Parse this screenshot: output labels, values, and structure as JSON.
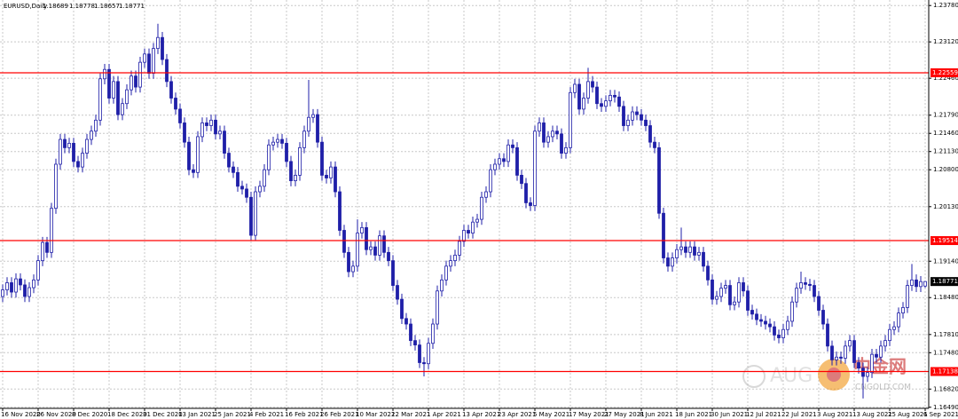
{
  "chart_data": {
    "type": "candlestick",
    "symbol": "EURUSD,Daily",
    "categories": [
      "16 Nov 2020",
      null,
      null,
      null,
      null,
      null,
      null,
      null,
      "26 Nov 2020",
      null,
      null,
      null,
      null,
      null,
      null,
      null,
      "8 Dec 2020",
      null,
      null,
      null,
      null,
      null,
      null,
      null,
      "18 Dec 2020",
      null,
      null,
      null,
      null,
      null,
      null,
      null,
      "31 Dec 2020",
      null,
      null,
      null,
      null,
      null,
      null,
      null,
      "13 Jan 2021",
      null,
      null,
      null,
      null,
      null,
      null,
      null,
      "25 Jan 2021",
      null,
      null,
      null,
      null,
      null,
      null,
      null,
      "4 Feb 2021",
      null,
      null,
      null,
      null,
      null,
      null,
      null,
      "16 Feb 2021",
      null,
      null,
      null,
      null,
      null,
      null,
      null,
      "26 Feb 2021",
      null,
      null,
      null,
      null,
      null,
      null,
      null,
      "10 Mar 2021",
      null,
      null,
      null,
      null,
      null,
      null,
      null,
      "22 Mar 2021",
      null,
      null,
      null,
      null,
      null,
      null,
      null,
      "1 Apr 2021",
      null,
      null,
      null,
      null,
      null,
      null,
      null,
      "13 Apr 2021",
      null,
      null,
      null,
      null,
      null,
      null,
      null,
      "23 Apr 2021",
      null,
      null,
      null,
      null,
      null,
      null,
      null,
      "5 May 2021",
      null,
      null,
      null,
      null,
      null,
      null,
      null,
      "17 May 2021",
      null,
      null,
      null,
      null,
      null,
      null,
      null,
      "27 May 2021",
      null,
      null,
      null,
      null,
      null,
      null,
      null,
      "8 Jun 2021",
      null,
      null,
      null,
      null,
      null,
      null,
      null,
      "18 Jun 2021",
      null,
      null,
      null,
      null,
      null,
      null,
      null,
      "30 Jun 2021",
      null,
      null,
      null,
      null,
      null,
      null,
      null,
      "12 Jul 2021",
      null,
      null,
      null,
      null,
      null,
      null,
      null,
      "22 Jul 2021",
      null,
      null,
      null,
      null,
      null,
      null,
      null,
      "3 Aug 2021",
      null,
      null,
      null,
      null,
      null,
      null,
      null,
      "13 Aug 2021",
      null,
      null,
      null,
      null,
      null,
      null,
      null,
      "25 Aug 2021",
      null,
      null,
      null,
      null,
      null,
      null,
      null,
      "6 Sep 2021"
    ],
    "open": [
      1.185,
      1.1862,
      1.1875,
      1.1858,
      1.1882,
      1.1871,
      1.185,
      1.1866,
      1.188,
      1.1915,
      1.1948,
      1.193,
      1.201,
      1.209,
      1.2135,
      1.212,
      1.2128,
      1.2095,
      1.2085,
      1.211,
      1.2135,
      1.215,
      1.217,
      1.2245,
      1.2262,
      1.221,
      1.224,
      1.218,
      1.22,
      1.2225,
      1.225,
      1.223,
      1.2275,
      1.229,
      1.2255,
      1.23,
      1.232,
      1.228,
      1.224,
      1.221,
      1.219,
      1.2165,
      1.213,
      1.208,
      1.2075,
      1.214,
      1.2165,
      1.216,
      1.217,
      1.2145,
      1.215,
      1.211,
      1.2085,
      1.2075,
      1.205,
      1.2045,
      1.203,
      1.1961,
      1.204,
      1.205,
      1.208,
      1.2125,
      1.213,
      1.2135,
      1.2128,
      1.2095,
      1.206,
      1.207,
      1.212,
      1.215,
      1.2175,
      1.218,
      1.213,
      1.207,
      1.2065,
      1.2085,
      1.204,
      1.197,
      1.193,
      1.1895,
      1.1905,
      1.1965,
      1.1975,
      1.1935,
      1.194,
      1.1925,
      1.196,
      1.193,
      1.1915,
      1.187,
      1.1845,
      1.181,
      1.18,
      1.177,
      1.1762,
      1.173,
      1.1728,
      1.1765,
      1.18,
      1.186,
      1.188,
      1.1905,
      1.1915,
      1.1925,
      1.195,
      1.197,
      1.1965,
      1.1985,
      1.199,
      1.203,
      1.204,
      1.208,
      1.209,
      1.21,
      1.2095,
      1.2125,
      1.212,
      1.207,
      1.2055,
      1.202,
      1.2015,
      1.215,
      1.2165,
      1.213,
      1.214,
      1.215,
      1.2145,
      1.211,
      1.212,
      1.222,
      1.2235,
      1.219,
      1.221,
      1.224,
      1.223,
      1.22,
      1.2195,
      1.2205,
      1.2215,
      1.2212,
      1.2195,
      1.216,
      1.217,
      1.2185,
      1.218,
      1.217,
      1.216,
      1.213,
      1.212,
      1.2001,
      1.192,
      1.1905,
      1.192,
      1.1935,
      1.194,
      1.193,
      1.194,
      1.1925,
      1.193,
      1.1905,
      1.188,
      1.1845,
      1.185,
      1.1865,
      1.187,
      1.1835,
      1.184,
      1.1875,
      1.186,
      1.1825,
      1.1818,
      1.1808,
      1.1805,
      1.18,
      1.1795,
      1.178,
      1.1775,
      1.179,
      1.1805,
      1.184,
      1.1865,
      1.1875,
      1.1872,
      1.187,
      1.185,
      1.1825,
      1.18,
      1.176,
      1.1735,
      1.174,
      1.1738,
      1.176,
      1.177,
      1.173,
      1.172,
      1.1705,
      1.1712,
      1.1745,
      1.174,
      1.176,
      1.177,
      1.179,
      1.1795,
      1.182,
      1.183,
      1.187,
      1.188,
      1.1868,
      1.18689
    ],
    "high": [
      1.1872,
      1.1885,
      1.1885,
      1.1892,
      1.1892,
      1.1881,
      1.1876,
      1.189,
      1.1925,
      1.1958,
      1.1958,
      1.202,
      1.21,
      1.2145,
      1.2145,
      1.2138,
      1.2138,
      1.2105,
      1.212,
      1.2145,
      1.216,
      1.218,
      1.2255,
      1.2272,
      1.2272,
      1.225,
      1.225,
      1.221,
      1.2235,
      1.226,
      1.226,
      1.2285,
      1.23,
      1.23,
      1.231,
      1.2345,
      1.233,
      1.229,
      1.225,
      1.222,
      1.22,
      1.2175,
      1.214,
      1.209,
      1.215,
      1.2175,
      1.2175,
      1.218,
      1.218,
      1.216,
      1.216,
      1.212,
      1.2095,
      1.2085,
      1.206,
      1.2055,
      1.204,
      1.205,
      1.206,
      1.209,
      1.2135,
      1.214,
      1.2145,
      1.2145,
      1.2138,
      1.2105,
      1.208,
      1.213,
      1.216,
      1.2243,
      1.219,
      1.219,
      1.214,
      1.208,
      1.2095,
      1.2095,
      1.205,
      1.198,
      1.194,
      1.1915,
      1.199,
      1.1985,
      1.1985,
      1.195,
      1.195,
      1.197,
      1.197,
      1.194,
      1.1925,
      1.188,
      1.1855,
      1.182,
      1.181,
      1.178,
      1.1772,
      1.174,
      1.1775,
      1.181,
      1.187,
      1.189,
      1.1915,
      1.1925,
      1.1935,
      1.196,
      1.198,
      1.198,
      1.1995,
      1.2,
      1.204,
      1.205,
      1.209,
      1.21,
      1.211,
      1.211,
      1.2135,
      1.2135,
      1.213,
      1.208,
      1.2065,
      1.203,
      1.216,
      1.2175,
      1.2175,
      1.215,
      1.216,
      1.216,
      1.2155,
      1.213,
      1.223,
      1.2245,
      1.2245,
      1.222,
      1.2265,
      1.225,
      1.224,
      1.221,
      1.2215,
      1.2225,
      1.2225,
      1.2222,
      1.2205,
      1.218,
      1.2195,
      1.2195,
      1.219,
      1.218,
      1.217,
      1.214,
      1.213,
      1.2011,
      1.193,
      1.193,
      1.1945,
      1.1975,
      1.195,
      1.195,
      1.195,
      1.194,
      1.194,
      1.1915,
      1.189,
      1.186,
      1.1875,
      1.188,
      1.188,
      1.185,
      1.1885,
      1.1885,
      1.187,
      1.1835,
      1.1828,
      1.1818,
      1.1815,
      1.181,
      1.1805,
      1.179,
      1.18,
      1.1815,
      1.185,
      1.1875,
      1.1895,
      1.1885,
      1.1882,
      1.188,
      1.186,
      1.1835,
      1.181,
      1.177,
      1.175,
      1.175,
      1.177,
      1.178,
      1.178,
      1.174,
      1.173,
      1.1722,
      1.1755,
      1.1755,
      1.177,
      1.178,
      1.18,
      1.1805,
      1.183,
      1.184,
      1.188,
      1.1909,
      1.189,
      1.1887,
      1.18778
    ],
    "low": [
      1.184,
      1.1852,
      1.1848,
      1.1848,
      1.1861,
      1.184,
      1.184,
      1.1856,
      1.187,
      1.1905,
      1.192,
      1.192,
      1.2,
      1.208,
      1.211,
      1.211,
      1.2085,
      1.2075,
      1.2075,
      1.21,
      1.2125,
      1.214,
      1.216,
      1.2235,
      1.22,
      1.22,
      1.217,
      1.217,
      1.219,
      1.2215,
      1.222,
      1.222,
      1.2265,
      1.2245,
      1.2245,
      1.229,
      1.227,
      1.223,
      1.22,
      1.218,
      1.2155,
      1.212,
      1.207,
      1.2065,
      1.2065,
      1.213,
      1.215,
      1.215,
      1.2135,
      1.2135,
      1.21,
      1.2075,
      1.2065,
      1.204,
      1.2035,
      1.202,
      1.1951,
      1.1951,
      1.203,
      1.204,
      1.207,
      1.2115,
      1.212,
      1.2118,
      1.2085,
      1.205,
      1.205,
      1.206,
      1.211,
      1.214,
      1.2165,
      1.212,
      1.206,
      1.2055,
      1.2055,
      1.203,
      1.196,
      1.192,
      1.1885,
      1.1885,
      1.1895,
      1.1955,
      1.1925,
      1.1925,
      1.1915,
      1.1915,
      1.192,
      1.1905,
      1.186,
      1.1835,
      1.18,
      1.179,
      1.176,
      1.1752,
      1.172,
      1.1705,
      1.1718,
      1.1755,
      1.179,
      1.185,
      1.187,
      1.1895,
      1.1905,
      1.1915,
      1.194,
      1.1955,
      1.1955,
      1.1975,
      1.198,
      1.202,
      1.203,
      1.207,
      1.208,
      1.2085,
      1.2085,
      1.211,
      1.206,
      1.2045,
      1.201,
      1.2005,
      1.2005,
      1.214,
      1.212,
      1.212,
      1.213,
      1.2135,
      1.21,
      1.21,
      1.211,
      1.221,
      1.218,
      1.218,
      1.22,
      1.222,
      1.219,
      1.2185,
      1.2185,
      1.2195,
      1.2202,
      1.2185,
      1.215,
      1.215,
      1.216,
      1.217,
      1.216,
      1.215,
      1.212,
      1.211,
      1.1991,
      1.191,
      1.1895,
      1.1895,
      1.191,
      1.1925,
      1.192,
      1.192,
      1.1915,
      1.1915,
      1.1895,
      1.187,
      1.1835,
      1.1835,
      1.184,
      1.1855,
      1.1825,
      1.1825,
      1.183,
      1.185,
      1.1815,
      1.1808,
      1.1798,
      1.1795,
      1.179,
      1.1785,
      1.177,
      1.1765,
      1.1765,
      1.178,
      1.1795,
      1.183,
      1.1855,
      1.1862,
      1.186,
      1.184,
      1.1815,
      1.179,
      1.175,
      1.1725,
      1.1725,
      1.1728,
      1.1728,
      1.175,
      1.172,
      1.171,
      1.1665,
      1.1695,
      1.1702,
      1.173,
      1.173,
      1.175,
      1.176,
      1.178,
      1.1785,
      1.181,
      1.182,
      1.186,
      1.1858,
      1.1858,
      1.18657
    ],
    "close": [
      1.1862,
      1.1875,
      1.1858,
      1.1882,
      1.1871,
      1.185,
      1.1866,
      1.188,
      1.1915,
      1.1948,
      1.193,
      1.201,
      1.209,
      1.2135,
      1.212,
      1.2128,
      1.2095,
      1.2085,
      1.211,
      1.2135,
      1.215,
      1.217,
      1.2245,
      1.2262,
      1.221,
      1.224,
      1.218,
      1.22,
      1.2225,
      1.225,
      1.223,
      1.2275,
      1.229,
      1.2255,
      1.23,
      1.232,
      1.228,
      1.224,
      1.221,
      1.219,
      1.2165,
      1.213,
      1.208,
      1.2075,
      1.214,
      1.2165,
      1.216,
      1.217,
      1.2145,
      1.215,
      1.211,
      1.2085,
      1.2075,
      1.205,
      1.2045,
      1.203,
      1.1961,
      1.204,
      1.205,
      1.208,
      1.2125,
      1.213,
      1.2135,
      1.2128,
      1.2095,
      1.206,
      1.207,
      1.212,
      1.215,
      1.2175,
      1.218,
      1.213,
      1.207,
      1.2065,
      1.2085,
      1.204,
      1.197,
      1.193,
      1.1895,
      1.1905,
      1.1965,
      1.1975,
      1.1935,
      1.194,
      1.1925,
      1.196,
      1.193,
      1.1915,
      1.187,
      1.1845,
      1.181,
      1.18,
      1.177,
      1.1762,
      1.173,
      1.1728,
      1.1765,
      1.18,
      1.186,
      1.188,
      1.1905,
      1.1915,
      1.1925,
      1.195,
      1.197,
      1.1965,
      1.1985,
      1.199,
      1.203,
      1.204,
      1.208,
      1.209,
      1.21,
      1.2095,
      1.2125,
      1.212,
      1.207,
      1.2055,
      1.202,
      1.2015,
      1.215,
      1.2165,
      1.213,
      1.214,
      1.215,
      1.2145,
      1.211,
      1.212,
      1.222,
      1.2235,
      1.219,
      1.221,
      1.224,
      1.223,
      1.22,
      1.2195,
      1.2205,
      1.2215,
      1.2212,
      1.2195,
      1.216,
      1.217,
      1.2185,
      1.218,
      1.217,
      1.216,
      1.213,
      1.212,
      1.2001,
      1.192,
      1.1905,
      1.192,
      1.1935,
      1.194,
      1.193,
      1.194,
      1.1925,
      1.193,
      1.1905,
      1.188,
      1.1845,
      1.185,
      1.1865,
      1.187,
      1.1835,
      1.184,
      1.1875,
      1.186,
      1.1825,
      1.1818,
      1.1808,
      1.1805,
      1.18,
      1.1795,
      1.178,
      1.1775,
      1.179,
      1.1805,
      1.184,
      1.1865,
      1.1875,
      1.1872,
      1.187,
      1.185,
      1.1825,
      1.18,
      1.176,
      1.1735,
      1.174,
      1.1738,
      1.176,
      1.177,
      1.173,
      1.172,
      1.1705,
      1.1712,
      1.1745,
      1.174,
      1.176,
      1.177,
      1.179,
      1.1795,
      1.182,
      1.183,
      1.187,
      1.188,
      1.1868,
      1.1877,
      1.18771
    ],
    "ylim": [
      1.1647,
      1.2388
    ],
    "yticks": [
      {
        "value": 1.2378,
        "label": "1.23780"
      },
      {
        "value": 1.2312,
        "label": "1.23120"
      },
      {
        "value": 1.2246,
        "label": "1.22460"
      },
      {
        "value": 1.2179,
        "label": "1.21790"
      },
      {
        "value": 1.2146,
        "label": "1.21460"
      },
      {
        "value": 1.2113,
        "label": "1.21130"
      },
      {
        "value": 1.208,
        "label": "1.20800"
      },
      {
        "value": 1.2013,
        "label": "1.20130"
      },
      {
        "value": 1.1914,
        "label": "1.19140"
      },
      {
        "value": 1.1848,
        "label": "1.18480"
      },
      {
        "value": 1.1781,
        "label": "1.17810"
      },
      {
        "value": 1.1748,
        "label": "1.17480"
      },
      {
        "value": 1.1682,
        "label": "1.16820"
      },
      {
        "value": 1.1649,
        "label": "1.16490"
      }
    ],
    "grid": true,
    "up_color": "#ffffff",
    "down_color": "#1f1fa8",
    "wick_color": "#1f1fa8",
    "levels": [
      1.22559,
      1.19514,
      1.17138
    ],
    "level_color": "#ff0000",
    "watermark": {
      "logo": "AUG",
      "brand": "中金网",
      "url": "CNGOLD.COM"
    }
  }
}
